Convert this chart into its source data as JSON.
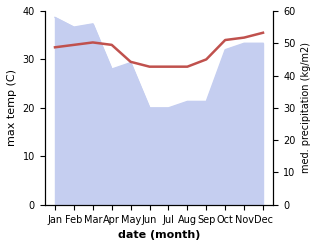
{
  "months": [
    "Jan",
    "Feb",
    "Mar",
    "Apr",
    "May",
    "Jun",
    "Jul",
    "Aug",
    "Sep",
    "Oct",
    "Nov",
    "Dec"
  ],
  "max_temp": [
    32.5,
    33.0,
    33.5,
    33.0,
    29.5,
    28.5,
    28.5,
    28.5,
    30.0,
    34.0,
    34.5,
    35.5
  ],
  "precipitation": [
    58.0,
    55.0,
    56.0,
    42.0,
    44.0,
    30.0,
    30.0,
    32.0,
    32.0,
    48.0,
    50.0,
    50.0
  ],
  "temp_color": "#c0514d",
  "precip_fill_color": "#c5cef0",
  "temp_ylim": [
    0,
    40
  ],
  "precip_ylim": [
    0,
    60
  ],
  "temp_yticks": [
    0,
    10,
    20,
    30,
    40
  ],
  "precip_yticks": [
    0,
    10,
    20,
    30,
    40,
    50,
    60
  ],
  "ylabel_left": "max temp (C)",
  "ylabel_right": "med. precipitation (kg/m2)",
  "xlabel": "date (month)",
  "figsize": [
    3.18,
    2.47
  ],
  "dpi": 100
}
